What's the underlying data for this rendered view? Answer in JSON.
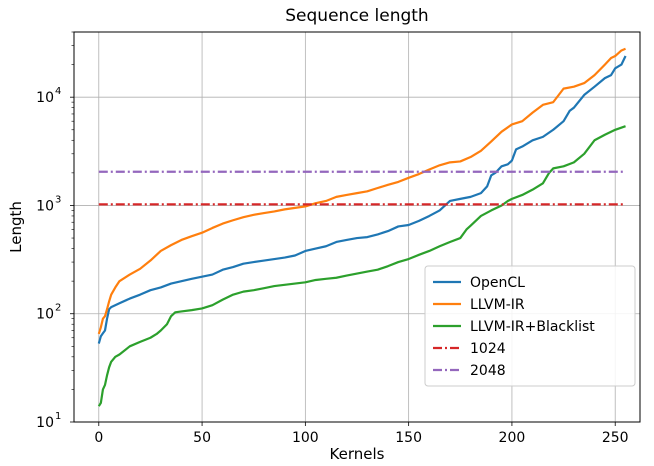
{
  "chart_data": {
    "type": "line",
    "title": "Sequence length",
    "xlabel": "Kernels",
    "ylabel": "Length",
    "xlim": [
      -12,
      262
    ],
    "ylim": [
      10,
      40000
    ],
    "yscale": "log",
    "grid": true,
    "legend_position": "lower-right",
    "x_ticks": [
      0,
      50,
      100,
      150,
      200,
      250
    ],
    "y_ticks": [
      {
        "value": 10,
        "base": "10",
        "exp": "1"
      },
      {
        "value": 100,
        "base": "10",
        "exp": "2"
      },
      {
        "value": 1000,
        "base": "10",
        "exp": "3"
      },
      {
        "value": 10000,
        "base": "10",
        "exp": "4"
      }
    ],
    "series": [
      {
        "name": "OpenCL",
        "color": "#1f77b4",
        "style": "solid",
        "points": [
          [
            0,
            53
          ],
          [
            1,
            62
          ],
          [
            2,
            66
          ],
          [
            3,
            70
          ],
          [
            4,
            90
          ],
          [
            5,
            110
          ],
          [
            6,
            115
          ],
          [
            10,
            125
          ],
          [
            15,
            138
          ],
          [
            20,
            150
          ],
          [
            25,
            165
          ],
          [
            30,
            175
          ],
          [
            35,
            190
          ],
          [
            40,
            200
          ],
          [
            45,
            210
          ],
          [
            50,
            220
          ],
          [
            55,
            230
          ],
          [
            60,
            255
          ],
          [
            65,
            270
          ],
          [
            70,
            290
          ],
          [
            75,
            300
          ],
          [
            80,
            310
          ],
          [
            85,
            320
          ],
          [
            90,
            330
          ],
          [
            95,
            345
          ],
          [
            100,
            380
          ],
          [
            105,
            400
          ],
          [
            110,
            420
          ],
          [
            115,
            460
          ],
          [
            120,
            480
          ],
          [
            125,
            500
          ],
          [
            130,
            510
          ],
          [
            135,
            540
          ],
          [
            140,
            580
          ],
          [
            145,
            640
          ],
          [
            150,
            660
          ],
          [
            155,
            720
          ],
          [
            160,
            800
          ],
          [
            165,
            900
          ],
          [
            170,
            1100
          ],
          [
            175,
            1150
          ],
          [
            180,
            1200
          ],
          [
            185,
            1300
          ],
          [
            188,
            1500
          ],
          [
            190,
            1900
          ],
          [
            192,
            2000
          ],
          [
            195,
            2300
          ],
          [
            198,
            2400
          ],
          [
            200,
            2600
          ],
          [
            202,
            3300
          ],
          [
            205,
            3500
          ],
          [
            210,
            4000
          ],
          [
            215,
            4300
          ],
          [
            220,
            5000
          ],
          [
            225,
            6000
          ],
          [
            228,
            7500
          ],
          [
            230,
            8000
          ],
          [
            235,
            10500
          ],
          [
            240,
            12500
          ],
          [
            245,
            15000
          ],
          [
            248,
            16000
          ],
          [
            250,
            18500
          ],
          [
            253,
            20000
          ],
          [
            255,
            24000
          ]
        ]
      },
      {
        "name": "LLVM-IR",
        "color": "#ff7f0e",
        "style": "solid",
        "points": [
          [
            0,
            65
          ],
          [
            1,
            75
          ],
          [
            2,
            90
          ],
          [
            3,
            95
          ],
          [
            4,
            110
          ],
          [
            5,
            130
          ],
          [
            6,
            150
          ],
          [
            8,
            175
          ],
          [
            10,
            200
          ],
          [
            15,
            230
          ],
          [
            20,
            260
          ],
          [
            25,
            310
          ],
          [
            30,
            380
          ],
          [
            35,
            430
          ],
          [
            40,
            480
          ],
          [
            45,
            520
          ],
          [
            50,
            560
          ],
          [
            55,
            620
          ],
          [
            60,
            680
          ],
          [
            65,
            730
          ],
          [
            70,
            780
          ],
          [
            75,
            820
          ],
          [
            80,
            850
          ],
          [
            85,
            880
          ],
          [
            90,
            920
          ],
          [
            95,
            950
          ],
          [
            100,
            980
          ],
          [
            105,
            1050
          ],
          [
            110,
            1100
          ],
          [
            115,
            1200
          ],
          [
            120,
            1250
          ],
          [
            125,
            1300
          ],
          [
            130,
            1350
          ],
          [
            135,
            1450
          ],
          [
            140,
            1550
          ],
          [
            145,
            1650
          ],
          [
            150,
            1800
          ],
          [
            155,
            1950
          ],
          [
            160,
            2150
          ],
          [
            165,
            2350
          ],
          [
            170,
            2500
          ],
          [
            175,
            2550
          ],
          [
            180,
            2800
          ],
          [
            185,
            3200
          ],
          [
            190,
            3900
          ],
          [
            195,
            4800
          ],
          [
            200,
            5600
          ],
          [
            205,
            6000
          ],
          [
            210,
            7200
          ],
          [
            215,
            8500
          ],
          [
            220,
            9000
          ],
          [
            225,
            12000
          ],
          [
            230,
            12500
          ],
          [
            235,
            13500
          ],
          [
            240,
            16000
          ],
          [
            245,
            20000
          ],
          [
            248,
            23000
          ],
          [
            250,
            24000
          ],
          [
            253,
            27000
          ],
          [
            255,
            28000
          ]
        ]
      },
      {
        "name": "LLVM-IR+Blacklist",
        "color": "#2ca02c",
        "style": "solid",
        "points": [
          [
            0,
            14
          ],
          [
            1,
            15
          ],
          [
            2,
            20
          ],
          [
            3,
            22
          ],
          [
            4,
            27
          ],
          [
            5,
            32
          ],
          [
            6,
            36
          ],
          [
            8,
            40
          ],
          [
            10,
            42
          ],
          [
            15,
            50
          ],
          [
            20,
            55
          ],
          [
            25,
            60
          ],
          [
            28,
            65
          ],
          [
            30,
            70
          ],
          [
            33,
            80
          ],
          [
            35,
            95
          ],
          [
            37,
            103
          ],
          [
            40,
            105
          ],
          [
            45,
            108
          ],
          [
            50,
            112
          ],
          [
            55,
            120
          ],
          [
            60,
            135
          ],
          [
            65,
            150
          ],
          [
            70,
            160
          ],
          [
            75,
            165
          ],
          [
            80,
            172
          ],
          [
            85,
            180
          ],
          [
            90,
            185
          ],
          [
            95,
            190
          ],
          [
            100,
            195
          ],
          [
            105,
            205
          ],
          [
            110,
            210
          ],
          [
            115,
            215
          ],
          [
            120,
            225
          ],
          [
            125,
            235
          ],
          [
            130,
            245
          ],
          [
            135,
            255
          ],
          [
            140,
            275
          ],
          [
            145,
            300
          ],
          [
            150,
            320
          ],
          [
            155,
            350
          ],
          [
            160,
            380
          ],
          [
            165,
            420
          ],
          [
            170,
            460
          ],
          [
            175,
            500
          ],
          [
            178,
            600
          ],
          [
            180,
            650
          ],
          [
            185,
            800
          ],
          [
            190,
            900
          ],
          [
            195,
            1000
          ],
          [
            198,
            1100
          ],
          [
            200,
            1150
          ],
          [
            205,
            1250
          ],
          [
            210,
            1400
          ],
          [
            215,
            1600
          ],
          [
            218,
            2000
          ],
          [
            220,
            2200
          ],
          [
            225,
            2300
          ],
          [
            230,
            2500
          ],
          [
            235,
            3000
          ],
          [
            240,
            4000
          ],
          [
            245,
            4500
          ],
          [
            250,
            5000
          ],
          [
            255,
            5400
          ]
        ]
      },
      {
        "name": "1024",
        "color": "#d62728",
        "style": "dashdot",
        "points": [
          [
            0,
            1024
          ],
          [
            255,
            1024
          ]
        ]
      },
      {
        "name": "2048",
        "color": "#9467bd",
        "style": "dashdot",
        "points": [
          [
            0,
            2048
          ],
          [
            255,
            2048
          ]
        ]
      }
    ]
  }
}
